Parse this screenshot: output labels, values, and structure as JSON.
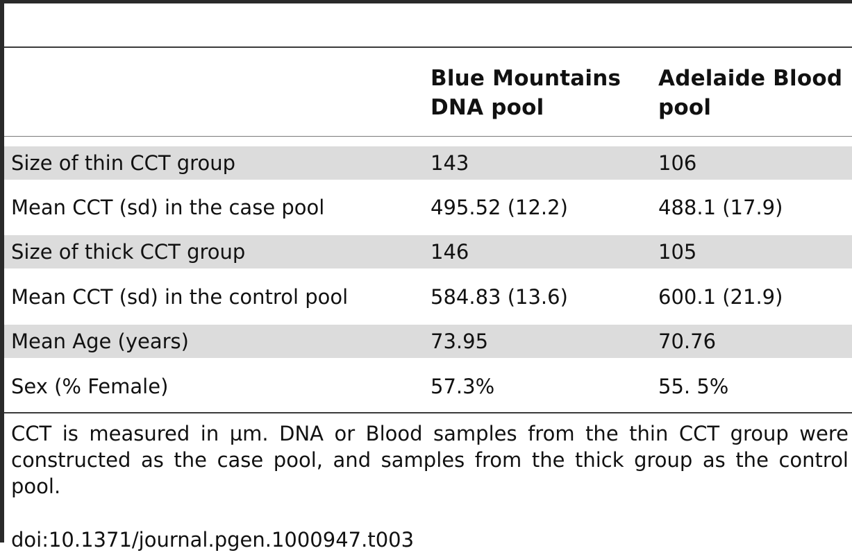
{
  "table": {
    "columns": [
      "",
      "Blue Mountains DNA pool",
      "Adelaide Blood pool"
    ],
    "col1_header": "Blue Mountains DNA pool",
    "col2_header": "Adelaide Blood pool",
    "rows": [
      {
        "label": "Size of thin CCT group",
        "blue_mountains": "143",
        "adelaide": "106"
      },
      {
        "label": "Mean CCT (sd) in the case pool",
        "blue_mountains": "495.52 (12.2)",
        "adelaide": "488.1 (17.9)"
      },
      {
        "label": "Size of thick CCT group",
        "blue_mountains": "146",
        "adelaide": "105"
      },
      {
        "label": "Mean CCT (sd) in the control pool",
        "blue_mountains": "584.83 (13.6)",
        "adelaide": "600.1 (21.9)"
      },
      {
        "label": "Mean Age (years)",
        "blue_mountains": "73.95",
        "adelaide": "70.76"
      },
      {
        "label": "Sex (% Female)",
        "blue_mountains": "57.3%",
        "adelaide": "55. 5%"
      }
    ]
  },
  "footnote": "CCT is measured in µm. DNA or Blood samples from the thin CCT group were constructed as the case pool, and samples from the thick group as the control pool.",
  "doi": "doi:10.1371/journal.pgen.1000947.t003",
  "colors": {
    "rule": "#2a2a2a",
    "row_shade": "#dcdcdc",
    "text": "#111111"
  }
}
